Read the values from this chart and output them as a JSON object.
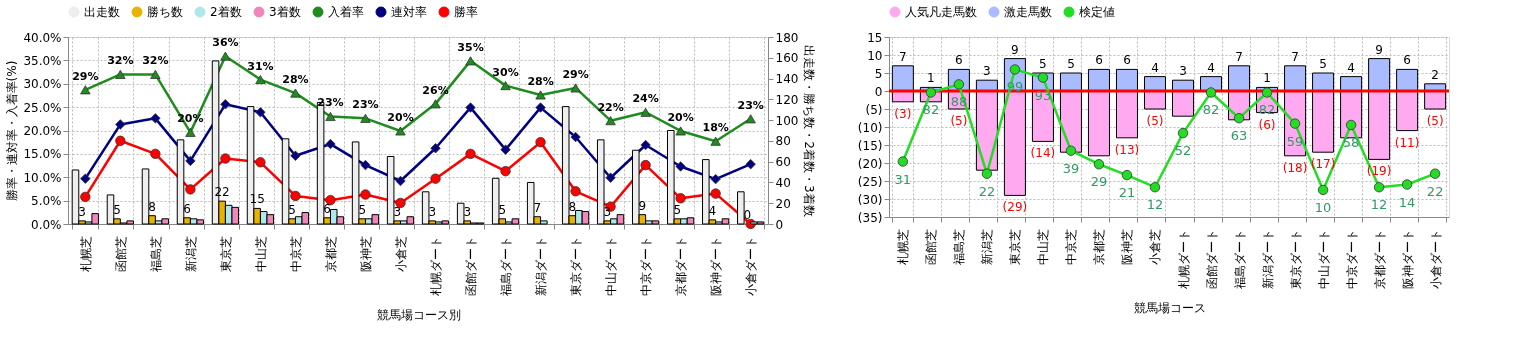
{
  "chart_data": [
    {
      "type": "bar",
      "xlabel": "競馬場コース別",
      "ylabel": "勝率・連対率・入着率(%)",
      "y2label": "出走数・勝ち数・2着数・3着数",
      "categories": [
        "札幌芝",
        "函館芝",
        "福島芝",
        "新潟芝",
        "東京芝",
        "中山芝",
        "中京芝",
        "京都芝",
        "阪神芝",
        "小倉芝",
        "札幌ダート",
        "函館ダート",
        "福島ダート",
        "新潟ダート",
        "東京ダート",
        "中山ダート",
        "中京ダート",
        "京都ダート",
        "阪神ダート",
        "小倉ダート"
      ],
      "series": [
        {
          "name": "出走数",
          "color": "#eeeeee",
          "axis": "y2",
          "values": [
            52,
            28,
            53,
            81,
            157,
            113,
            82,
            117,
            79,
            65,
            31,
            20,
            44,
            40,
            113,
            81,
            71,
            90,
            62,
            31
          ]
        },
        {
          "name": "勝ち数",
          "color": "#e6b400",
          "axis": "y2",
          "values": [
            3,
            5,
            8,
            6,
            22,
            15,
            5,
            6,
            5,
            3,
            3,
            3,
            5,
            7,
            8,
            3,
            9,
            5,
            4,
            0
          ],
          "value_labels": [
            "3",
            "5",
            "8",
            "6",
            "22",
            "15",
            "5",
            "6",
            "5",
            "3",
            "3",
            "3",
            "5",
            "7",
            "8",
            "3",
            "9",
            "5",
            "4",
            "0"
          ]
        },
        {
          "name": "2着数",
          "color": "#aee8ee",
          "axis": "y2",
          "values": [
            2,
            1,
            3,
            5,
            18,
            12,
            7,
            14,
            5,
            3,
            2,
            1,
            2,
            3,
            13,
            5,
            3,
            5,
            2,
            2
          ]
        },
        {
          "name": "3着数",
          "color": "#ee88bb",
          "axis": "y2",
          "values": [
            10,
            3,
            5,
            4,
            16,
            9,
            11,
            7,
            9,
            7,
            3,
            1,
            5,
            null,
            12,
            9,
            3,
            6,
            5,
            2
          ]
        },
        {
          "name": "入着率",
          "type": "line",
          "marker": "triangle",
          "color": "#1e8c1e",
          "values": [
            28.7,
            32.0,
            32.0,
            19.6,
            35.9,
            30.9,
            28.0,
            23.0,
            22.6,
            19.9,
            25.7,
            34.9,
            29.6,
            27.6,
            29.1,
            22.1,
            23.9,
            19.9,
            17.7,
            22.5
          ],
          "value_labels": [
            "29%",
            "32%",
            "32%",
            "20%",
            "36%",
            "31%",
            "28%",
            "23%",
            "23%",
            "20%",
            "26%",
            "35%",
            "30%",
            "28%",
            "29%",
            "22%",
            "24%",
            "20%",
            "18%",
            "23%"
          ]
        },
        {
          "name": "連対率",
          "type": "line",
          "marker": "diamond",
          "color": "#000080",
          "values": [
            9.7,
            21.3,
            22.6,
            13.5,
            25.6,
            23.9,
            14.6,
            17.1,
            12.6,
            9.2,
            16.2,
            24.9,
            15.9,
            24.9,
            18.6,
            9.9,
            16.9,
            12.3,
            9.6,
            12.8
          ]
        },
        {
          "name": "勝率",
          "type": "line",
          "marker": "circle",
          "color": "#ff0000",
          "values": [
            5.8,
            17.8,
            15.0,
            7.4,
            14.0,
            13.2,
            6.0,
            5.1,
            6.3,
            4.5,
            9.7,
            15.0,
            11.3,
            17.5,
            7.0,
            3.7,
            12.6,
            5.5,
            6.5,
            0
          ]
        }
      ],
      "ylim": [
        0,
        40
      ],
      "yticks": [
        {
          "value": 0,
          "label": "0.0%"
        },
        {
          "value": 5,
          "label": "5.0%"
        },
        {
          "value": 10,
          "label": "10.0%"
        },
        {
          "value": 15,
          "label": "15.0%"
        },
        {
          "value": 20,
          "label": "20.0%"
        },
        {
          "value": 25,
          "label": "25.0%"
        },
        {
          "value": 30,
          "label": "30.0%"
        },
        {
          "value": 35,
          "label": "35.0%"
        },
        {
          "value": 40,
          "label": "40.0%"
        }
      ],
      "y2lim": [
        0,
        180
      ],
      "y2ticks": [
        0,
        20,
        40,
        60,
        80,
        100,
        120,
        140,
        160,
        180
      ],
      "grid": true,
      "legend": "top"
    },
    {
      "type": "bar",
      "stacked": true,
      "xlabel": "競馬場コース",
      "categories": [
        "札幌芝",
        "函館芝",
        "福島芝",
        "新潟芝",
        "東京芝",
        "中山芝",
        "中京芝",
        "京都芝",
        "阪神芝",
        "小倉芝",
        "札幌ダート",
        "函館ダート",
        "福島ダート",
        "新潟ダート",
        "東京ダート",
        "中山ダート",
        "中京ダート",
        "京都ダート",
        "阪神ダート",
        "小倉ダート"
      ],
      "series": [
        {
          "name": "人気凡走馬数",
          "color": "#ffaaf0",
          "values": [
            -3,
            -3,
            -5,
            -22,
            -29,
            -14,
            -17,
            -18,
            -13,
            -5,
            -7,
            0,
            -8,
            -6,
            -18,
            -17,
            -13,
            -19,
            -11,
            -5
          ],
          "value_labels": [
            "(3)",
            null,
            "(5)",
            null,
            "(29)",
            "(14)",
            null,
            null,
            "(13)",
            "(5)",
            null,
            null,
            null,
            "(6)",
            "(18)",
            "(17)",
            null,
            "(19)",
            "(11)",
            "(5)"
          ]
        },
        {
          "name": "激走馬数",
          "color": "#aabbff",
          "values": [
            7,
            1,
            6,
            3,
            9,
            5,
            5,
            6,
            6,
            4,
            3,
            4,
            7,
            1,
            7,
            5,
            4,
            9,
            6,
            2
          ],
          "value_labels": [
            "7",
            "1",
            "6",
            "3",
            "9",
            "5",
            "5",
            "6",
            "6",
            "4",
            "3",
            "4",
            "7",
            "1",
            "7",
            "5",
            "4",
            "9",
            "6",
            "2"
          ]
        },
        {
          "name": "検定値",
          "type": "line",
          "axis": "y2",
          "marker": "circle",
          "color": "#22dd22",
          "values": [
            31,
            82,
            88,
            22,
            99,
            93,
            39,
            29,
            21,
            12,
            52,
            82,
            63,
            82,
            59,
            10,
            58,
            12,
            14,
            22
          ],
          "value_labels": [
            "31",
            "82",
            "88",
            "22",
            "99",
            "93",
            "39",
            "29",
            "21",
            "12",
            "52",
            "82",
            "63",
            "82",
            "59",
            "10",
            "58",
            "12",
            "14",
            "22"
          ]
        }
      ],
      "ylim": [
        -35,
        15
      ],
      "yticks": [
        15,
        10,
        5,
        0,
        {
          "value": -5,
          "label": "(5)"
        },
        {
          "value": -10,
          "label": "(10)"
        },
        {
          "value": -15,
          "label": "(15)"
        },
        {
          "value": -20,
          "label": "(20)"
        },
        {
          "value": -25,
          "label": "(25)"
        },
        {
          "value": -30,
          "label": "(30)"
        },
        {
          "value": -35,
          "label": "(35)"
        }
      ],
      "y2lim": [
        -10,
        123
      ],
      "ref_lines": [
        {
          "axis": "y",
          "value": 0,
          "color": "#ff0000"
        }
      ],
      "grid": true,
      "legend": "top"
    }
  ]
}
